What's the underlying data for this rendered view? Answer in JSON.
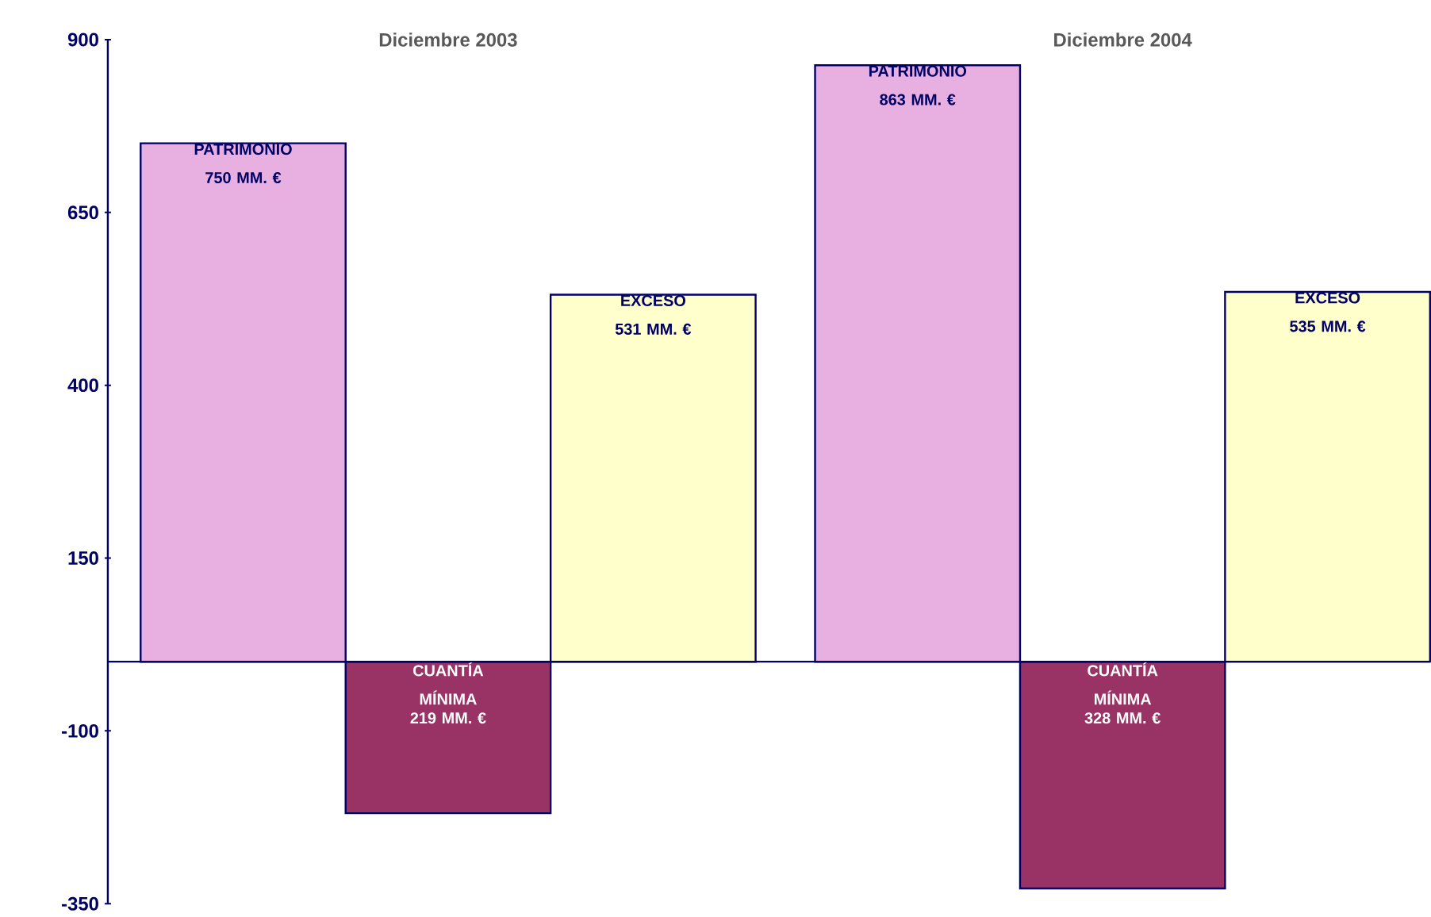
{
  "chart_data": {
    "type": "bar",
    "categories": [
      null,
      null,
      null,
      null,
      null,
      null
    ],
    "values": [
      750,
      -219,
      531,
      863,
      -328,
      535
    ],
    "colors": [
      "#e8b0e0",
      "#993366",
      "#ffffcc",
      "#e8b0e0",
      "#993366",
      "#ffffcc"
    ],
    "value_labels": [
      "PATRIMONIO 750 MM. €",
      "CUANTÍA MÍNIMA 219 MM. €",
      "EXCESO 531 MM. €",
      "PATRIMONIO 863 MM. €",
      "CUANTÍA MÍNIMA 328 MM. €",
      "EXCESO 535 MM. €"
    ],
    "annotations": [
      "Diciembre 2003",
      "Diciembre 2004"
    ],
    "ylim": [
      -350,
      900
    ],
    "yticks": [
      -350,
      -100,
      150,
      400,
      650,
      900
    ],
    "ref_lines": [
      {
        "axis": "y",
        "value": 0,
        "color": "#000066"
      }
    ],
    "grid": false
  }
}
